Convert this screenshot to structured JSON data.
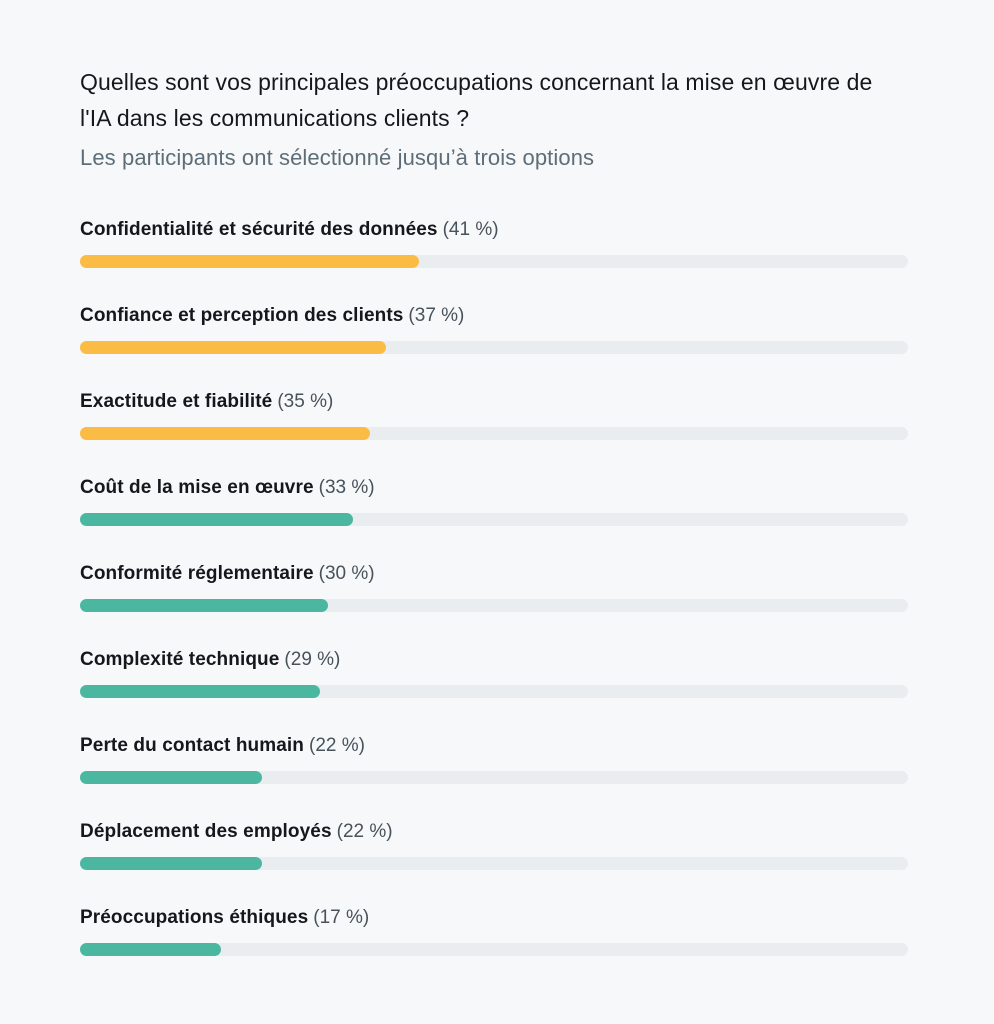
{
  "header": {
    "title": "Quelles sont vos principales préoccupations concernant la mise en œuvre de l'IA dans les communications clients ?",
    "subtitle": "Les participants ont sélectionné jusqu’à trois options"
  },
  "chart_data": {
    "type": "bar",
    "orientation": "horizontal",
    "title": "Quelles sont vos principales préoccupations concernant la mise en œuvre de l'IA dans les communications clients ?",
    "subtitle": "Les participants ont sélectionné jusqu’à trois options",
    "categories": [
      "Confidentialité et sécurité des données",
      "Confiance et perception des clients",
      "Exactitude et fiabilité",
      "Coût de la mise en œuvre",
      "Conformité réglementaire",
      "Complexité technique",
      "Perte du contact humain",
      "Déplacement des employés",
      "Préoccupations éthiques"
    ],
    "values": [
      41,
      37,
      35,
      33,
      30,
      29,
      22,
      22,
      17
    ],
    "value_labels": [
      "(41 %)",
      "(37 %)",
      "(35 %)",
      "(33 %)",
      "(30 %)",
      "(29 %)",
      "(22 %)",
      "(22 %)",
      "(17 %)"
    ],
    "bar_colors": [
      "#FBBC46",
      "#FBBC46",
      "#FBBC46",
      "#4BB7A0",
      "#4BB7A0",
      "#4BB7A0",
      "#4BB7A0",
      "#4BB7A0",
      "#4BB7A0"
    ],
    "xlim": [
      0,
      100
    ],
    "grid": false,
    "legend": false
  },
  "colors": {
    "background": "#F7F8FA",
    "track": "#E9EDEF",
    "accent_yellow": "#FBBC46",
    "accent_teal": "#4BB7A0",
    "title_text": "#14181C",
    "subtitle_text": "#5D6E79",
    "percent_text": "#47525B"
  }
}
